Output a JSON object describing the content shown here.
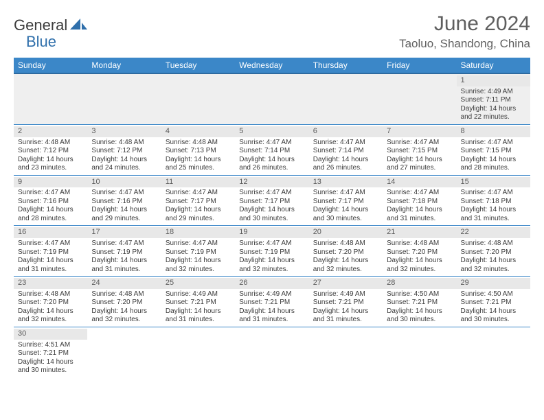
{
  "logo": {
    "part1": "General",
    "part2": "Blue",
    "accent_color": "#2f6fab"
  },
  "header": {
    "title": "June 2024",
    "location": "Taoluo, Shandong, China"
  },
  "colors": {
    "header_bg": "#3b87c8",
    "header_text": "#ffffff",
    "row_border": "#3b87c8",
    "daynum_bg": "#e8e8e8",
    "empty_bg": "#efefef",
    "body_text": "#3a3a3a"
  },
  "dayHeaders": [
    "Sunday",
    "Monday",
    "Tuesday",
    "Wednesday",
    "Thursday",
    "Friday",
    "Saturday"
  ],
  "weeks": [
    [
      null,
      null,
      null,
      null,
      null,
      null,
      {
        "n": "1",
        "sunrise": "Sunrise: 4:49 AM",
        "sunset": "Sunset: 7:11 PM",
        "daylight": "Daylight: 14 hours and 22 minutes."
      }
    ],
    [
      {
        "n": "2",
        "sunrise": "Sunrise: 4:48 AM",
        "sunset": "Sunset: 7:12 PM",
        "daylight": "Daylight: 14 hours and 23 minutes."
      },
      {
        "n": "3",
        "sunrise": "Sunrise: 4:48 AM",
        "sunset": "Sunset: 7:12 PM",
        "daylight": "Daylight: 14 hours and 24 minutes."
      },
      {
        "n": "4",
        "sunrise": "Sunrise: 4:48 AM",
        "sunset": "Sunset: 7:13 PM",
        "daylight": "Daylight: 14 hours and 25 minutes."
      },
      {
        "n": "5",
        "sunrise": "Sunrise: 4:47 AM",
        "sunset": "Sunset: 7:14 PM",
        "daylight": "Daylight: 14 hours and 26 minutes."
      },
      {
        "n": "6",
        "sunrise": "Sunrise: 4:47 AM",
        "sunset": "Sunset: 7:14 PM",
        "daylight": "Daylight: 14 hours and 26 minutes."
      },
      {
        "n": "7",
        "sunrise": "Sunrise: 4:47 AM",
        "sunset": "Sunset: 7:15 PM",
        "daylight": "Daylight: 14 hours and 27 minutes."
      },
      {
        "n": "8",
        "sunrise": "Sunrise: 4:47 AM",
        "sunset": "Sunset: 7:15 PM",
        "daylight": "Daylight: 14 hours and 28 minutes."
      }
    ],
    [
      {
        "n": "9",
        "sunrise": "Sunrise: 4:47 AM",
        "sunset": "Sunset: 7:16 PM",
        "daylight": "Daylight: 14 hours and 28 minutes."
      },
      {
        "n": "10",
        "sunrise": "Sunrise: 4:47 AM",
        "sunset": "Sunset: 7:16 PM",
        "daylight": "Daylight: 14 hours and 29 minutes."
      },
      {
        "n": "11",
        "sunrise": "Sunrise: 4:47 AM",
        "sunset": "Sunset: 7:17 PM",
        "daylight": "Daylight: 14 hours and 29 minutes."
      },
      {
        "n": "12",
        "sunrise": "Sunrise: 4:47 AM",
        "sunset": "Sunset: 7:17 PM",
        "daylight": "Daylight: 14 hours and 30 minutes."
      },
      {
        "n": "13",
        "sunrise": "Sunrise: 4:47 AM",
        "sunset": "Sunset: 7:17 PM",
        "daylight": "Daylight: 14 hours and 30 minutes."
      },
      {
        "n": "14",
        "sunrise": "Sunrise: 4:47 AM",
        "sunset": "Sunset: 7:18 PM",
        "daylight": "Daylight: 14 hours and 31 minutes."
      },
      {
        "n": "15",
        "sunrise": "Sunrise: 4:47 AM",
        "sunset": "Sunset: 7:18 PM",
        "daylight": "Daylight: 14 hours and 31 minutes."
      }
    ],
    [
      {
        "n": "16",
        "sunrise": "Sunrise: 4:47 AM",
        "sunset": "Sunset: 7:19 PM",
        "daylight": "Daylight: 14 hours and 31 minutes."
      },
      {
        "n": "17",
        "sunrise": "Sunrise: 4:47 AM",
        "sunset": "Sunset: 7:19 PM",
        "daylight": "Daylight: 14 hours and 31 minutes."
      },
      {
        "n": "18",
        "sunrise": "Sunrise: 4:47 AM",
        "sunset": "Sunset: 7:19 PM",
        "daylight": "Daylight: 14 hours and 32 minutes."
      },
      {
        "n": "19",
        "sunrise": "Sunrise: 4:47 AM",
        "sunset": "Sunset: 7:19 PM",
        "daylight": "Daylight: 14 hours and 32 minutes."
      },
      {
        "n": "20",
        "sunrise": "Sunrise: 4:48 AM",
        "sunset": "Sunset: 7:20 PM",
        "daylight": "Daylight: 14 hours and 32 minutes."
      },
      {
        "n": "21",
        "sunrise": "Sunrise: 4:48 AM",
        "sunset": "Sunset: 7:20 PM",
        "daylight": "Daylight: 14 hours and 32 minutes."
      },
      {
        "n": "22",
        "sunrise": "Sunrise: 4:48 AM",
        "sunset": "Sunset: 7:20 PM",
        "daylight": "Daylight: 14 hours and 32 minutes."
      }
    ],
    [
      {
        "n": "23",
        "sunrise": "Sunrise: 4:48 AM",
        "sunset": "Sunset: 7:20 PM",
        "daylight": "Daylight: 14 hours and 32 minutes."
      },
      {
        "n": "24",
        "sunrise": "Sunrise: 4:48 AM",
        "sunset": "Sunset: 7:20 PM",
        "daylight": "Daylight: 14 hours and 32 minutes."
      },
      {
        "n": "25",
        "sunrise": "Sunrise: 4:49 AM",
        "sunset": "Sunset: 7:21 PM",
        "daylight": "Daylight: 14 hours and 31 minutes."
      },
      {
        "n": "26",
        "sunrise": "Sunrise: 4:49 AM",
        "sunset": "Sunset: 7:21 PM",
        "daylight": "Daylight: 14 hours and 31 minutes."
      },
      {
        "n": "27",
        "sunrise": "Sunrise: 4:49 AM",
        "sunset": "Sunset: 7:21 PM",
        "daylight": "Daylight: 14 hours and 31 minutes."
      },
      {
        "n": "28",
        "sunrise": "Sunrise: 4:50 AM",
        "sunset": "Sunset: 7:21 PM",
        "daylight": "Daylight: 14 hours and 30 minutes."
      },
      {
        "n": "29",
        "sunrise": "Sunrise: 4:50 AM",
        "sunset": "Sunset: 7:21 PM",
        "daylight": "Daylight: 14 hours and 30 minutes."
      }
    ],
    [
      {
        "n": "30",
        "sunrise": "Sunrise: 4:51 AM",
        "sunset": "Sunset: 7:21 PM",
        "daylight": "Daylight: 14 hours and 30 minutes."
      },
      null,
      null,
      null,
      null,
      null,
      null
    ]
  ]
}
